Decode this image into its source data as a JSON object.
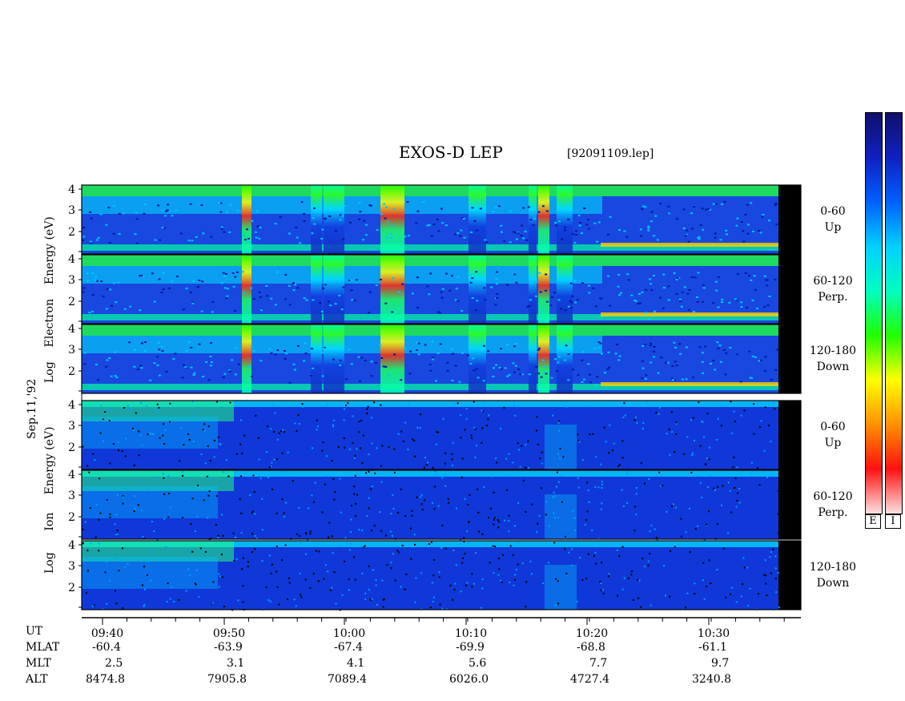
{
  "header": {
    "title": "EXOS-D LEP",
    "file": "[92091109.lep]"
  },
  "date_label": "Sep.11,'92",
  "group_labels": {
    "electron": [
      "Log",
      "Electron",
      "Energy",
      "(eV)"
    ],
    "ion": [
      "Log",
      "Ion",
      "Energy",
      "(eV)"
    ]
  },
  "panels": [
    {
      "angle": "0-60",
      "dir": "Up"
    },
    {
      "angle": "60-120",
      "dir": "Perp."
    },
    {
      "angle": "120-180",
      "dir": "Down"
    },
    {
      "angle": "0-60",
      "dir": "Up"
    },
    {
      "angle": "60-120",
      "dir": "Perp."
    },
    {
      "angle": "120-180",
      "dir": "Down"
    }
  ],
  "colorbar": {
    "labels": [
      "E",
      "I"
    ],
    "colors": [
      "#fde0e0",
      "#ff1010",
      "#ff9000",
      "#ffff00",
      "#20ff00",
      "#00ffc0",
      "#00d0ff",
      "#0060ff",
      "#1020c0",
      "#10106a"
    ]
  },
  "chart_data": {
    "type": "heatmap",
    "title": "EXOS-D LEP",
    "yticks": [
      "2",
      "3",
      "4"
    ],
    "xticks": [
      "09:40",
      "09:50",
      "10:00",
      "10:10",
      "10:20",
      "10:30"
    ],
    "ephemeris": {
      "rows": [
        "UT",
        "MLAT",
        "MLT",
        "ALT"
      ],
      "MLAT": [
        "-60.4",
        "-63.9",
        "-67.4",
        "-69.9",
        "-68.8",
        "-61.1"
      ],
      "MLT": [
        "2.5",
        "3.1",
        "4.1",
        "5.6",
        "7.7",
        "9.7"
      ],
      "ALT": [
        "8474.8",
        "7905.8",
        "7089.4",
        "6026.0",
        "4727.4",
        "3240.8"
      ]
    }
  }
}
